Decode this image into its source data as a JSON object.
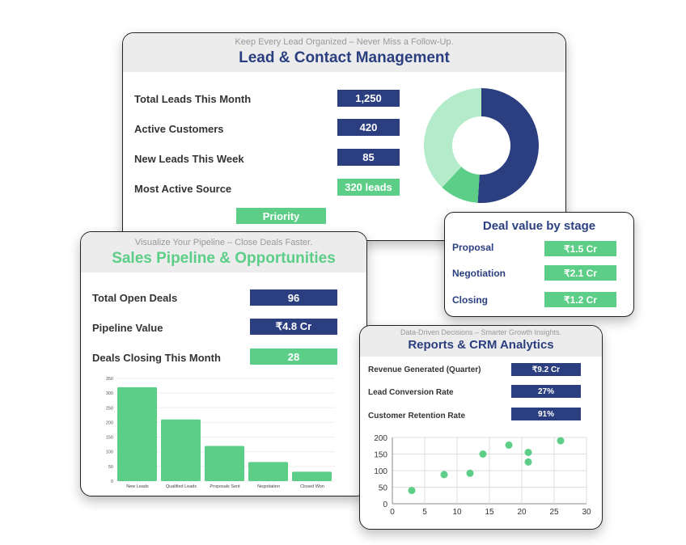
{
  "colors": {
    "navy": "#2b3f80",
    "green": "#5cce87",
    "pale_green": "#b3ebcb"
  },
  "lead": {
    "subtitle": "Keep Every Lead Organized – Never Miss a Follow-Up.",
    "title": "Lead & Contact Management",
    "rows": [
      {
        "label": "Total Leads This Month",
        "value": "1,250"
      },
      {
        "label": "Active Customers",
        "value": "420"
      },
      {
        "label": "New Leads This Week",
        "value": "85"
      },
      {
        "label": "Most Active Source",
        "value": "320 leads"
      }
    ],
    "priority_label": "Priority",
    "donut": [
      {
        "share": 51,
        "color": "#2b3f80"
      },
      {
        "share": 11,
        "color": "#5cce87"
      },
      {
        "share": 38,
        "color": "#b3ebcb"
      }
    ]
  },
  "deal": {
    "title": "Deal value by stage",
    "rows": [
      {
        "label": "Proposal",
        "value": "₹1.5 Cr"
      },
      {
        "label": "Negotiation",
        "value": "₹2.1 Cr"
      },
      {
        "label": "Closing",
        "value": "₹1.2 Cr"
      }
    ]
  },
  "pipeline": {
    "subtitle": "Visualize Your Pipeline – Close Deals Faster.",
    "title": "Sales Pipeline & Opportunities",
    "rows": [
      {
        "label": "Total Open Deals",
        "value": "96"
      },
      {
        "label": "Pipeline Value",
        "value": "₹4.8 Cr"
      },
      {
        "label": "Deals Closing This Month",
        "value": "28"
      }
    ]
  },
  "reports": {
    "subtitle": "Data-Driven Decisions – Smarter Growth Insights.",
    "title": "Reports & CRM Analytics",
    "rows": [
      {
        "label": "Revenue Generated (Quarter)",
        "value": "₹9.2 Cr"
      },
      {
        "label": "Lead Conversion Rate",
        "value": "27%"
      },
      {
        "label": "Customer Retention Rate",
        "value": "91%"
      }
    ]
  },
  "chart_data": [
    {
      "type": "bar",
      "categories": [
        "New Leads",
        "Qualified Leads",
        "Proposals Sent",
        "Negotiation",
        "Closed Won"
      ],
      "values": [
        320,
        210,
        120,
        65,
        32
      ],
      "ylim": [
        0,
        350
      ],
      "yticks": [
        0,
        50,
        100,
        150,
        200,
        250,
        300,
        350
      ],
      "grid": true
    },
    {
      "type": "scatter",
      "x": [
        3,
        8,
        12,
        14,
        18,
        21,
        21,
        26
      ],
      "y": [
        40,
        88,
        92,
        150,
        177,
        155,
        126,
        190
      ],
      "xlim": [
        0,
        30
      ],
      "ylim": [
        0,
        200
      ],
      "xticks": [
        0,
        5,
        10,
        15,
        20,
        25,
        30
      ],
      "yticks": [
        0,
        50,
        100,
        150,
        200
      ],
      "grid": true
    },
    {
      "type": "pie",
      "values": [
        51,
        11,
        38
      ],
      "donut": true
    }
  ]
}
